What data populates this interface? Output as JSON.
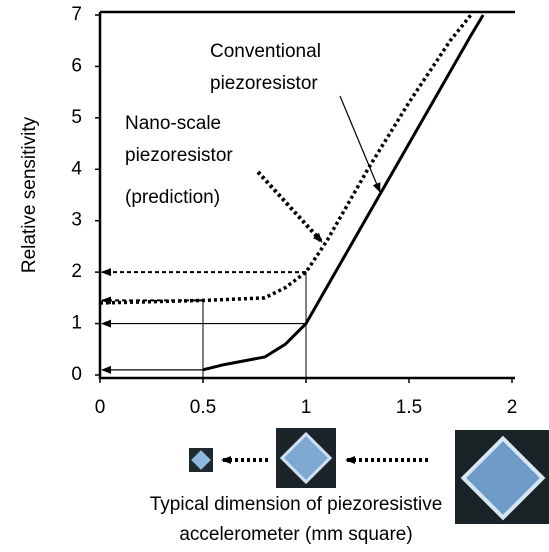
{
  "chart_data": {
    "type": "line",
    "ylabel": "Relative sensitivity",
    "xlabel": [
      "Typical dimension of piezoresistive",
      "accelerometer (mm square)"
    ],
    "xlim": [
      0,
      2
    ],
    "xticks": [
      0,
      0.5,
      1,
      1.5,
      2
    ],
    "ylim": [
      0,
      7
    ],
    "yticks": [
      0,
      1,
      2,
      3,
      4,
      5,
      6,
      7
    ],
    "series": [
      {
        "color": "#000000",
        "style": "solid",
        "x": [
          0.5,
          0.6,
          0.8,
          0.9,
          1.0,
          1.2,
          1.4,
          1.6,
          1.8,
          1.86
        ],
        "values": [
          0.1,
          0.2,
          0.35,
          0.6,
          1.0,
          2.4,
          3.8,
          5.2,
          6.6,
          7.0
        ]
      },
      {
        "color": "#000000",
        "style": "dotted",
        "x": [
          0,
          0.2,
          0.5,
          0.8,
          0.9,
          1.0,
          1.1,
          1.3,
          1.5,
          1.7,
          1.8
        ],
        "values": [
          1.4,
          1.42,
          1.45,
          1.5,
          1.7,
          2.0,
          2.6,
          4.0,
          5.3,
          6.5,
          7.0
        ]
      }
    ],
    "annotations": {
      "conventional": [
        "Conventional",
        "piezoresistor"
      ],
      "nano": [
        "Nano-scale",
        "piezoresistor"
      ],
      "prediction": "(prediction)"
    }
  }
}
